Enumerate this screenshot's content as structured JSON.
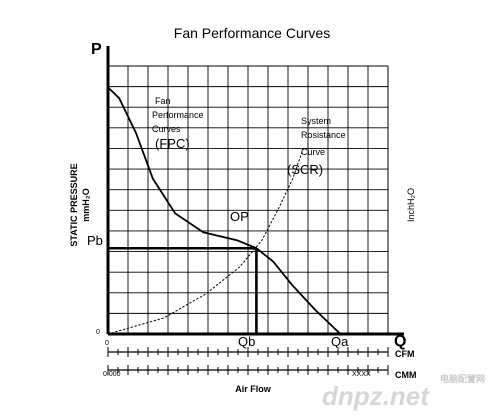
{
  "chart_data": {
    "type": "line",
    "title": "Fan Performance Curves",
    "y_axis_letter": "P",
    "x_axis_letter": "Q",
    "ylabel": "STATIC PRESSURE",
    "ylabel_unit": "mmH₂O",
    "ylabel_right": "InchH₂O",
    "xlabel": "Air Flow",
    "x_unit_top": "CMM",
    "x_unit_bottom": "CFM",
    "origin_y_label": "0",
    "origin_x_label": "0",
    "cfm_start_label": "0.000",
    "cfm_end_label": "XXXX",
    "xlim": [
      0,
      10
    ],
    "ylim": [
      0,
      10
    ],
    "grid": true,
    "series": [
      {
        "name": "Fan Performance Curves (FPC)",
        "name_lines": [
          "Fan",
          "Performance",
          "Curves"
        ],
        "tag": "(FPC)",
        "style": "solid",
        "x": [
          0.0,
          0.4,
          1.0,
          1.6,
          2.4,
          3.4,
          4.6,
          5.3,
          5.9,
          6.6,
          7.4,
          8.3
        ],
        "y": [
          9.2,
          8.8,
          7.5,
          5.8,
          4.5,
          3.8,
          3.5,
          3.2,
          2.7,
          1.8,
          0.9,
          0.0
        ]
      },
      {
        "name": "System Rosistance Curve (SCR)",
        "name_lines": [
          "System",
          "Rosistance",
          "Curve"
        ],
        "tag": "(SCR)",
        "style": "dotted",
        "x": [
          0.0,
          2.0,
          3.5,
          4.7,
          5.5,
          6.1,
          6.6,
          7.0
        ],
        "y": [
          0.0,
          0.6,
          1.5,
          2.5,
          3.5,
          4.7,
          5.8,
          7.0
        ]
      }
    ],
    "operating_point": {
      "label": "OP",
      "x": 5.3,
      "y": 3.2
    },
    "reference_labels": {
      "pressure": "Pb",
      "flow_b": "Qb",
      "flow_a": "Qa"
    },
    "flow_a_value": 8.3
  },
  "watermark": {
    "text": "dnpz.net",
    "subtext": "电脑配置网"
  }
}
